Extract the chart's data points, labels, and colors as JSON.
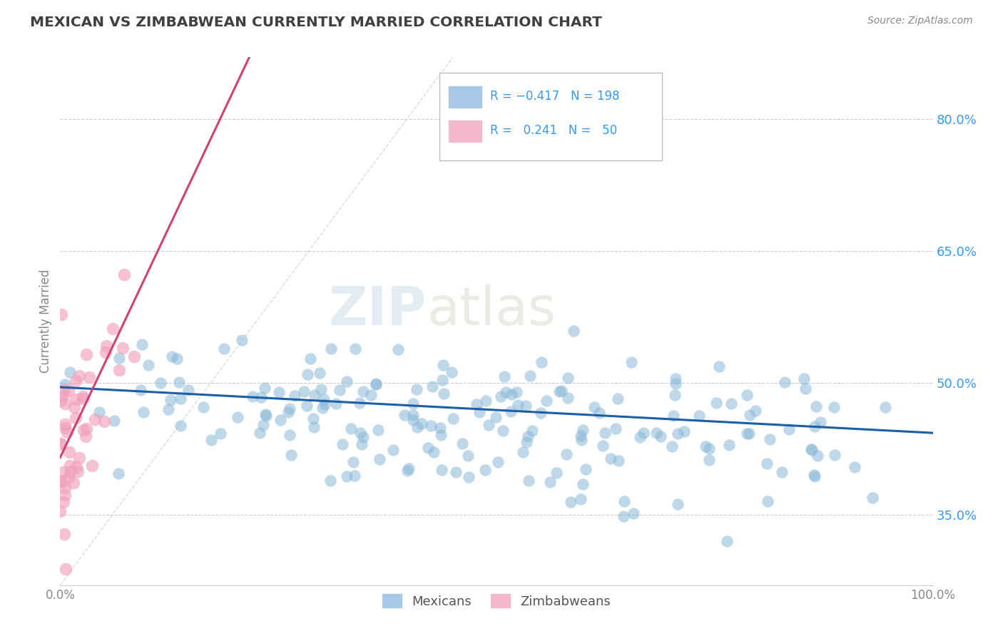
{
  "title": "MEXICAN VS ZIMBABWEAN CURRENTLY MARRIED CORRELATION CHART",
  "source_text": "Source: ZipAtlas.com",
  "ylabel": "Currently Married",
  "watermark_part1": "ZIP",
  "watermark_part2": "atlas",
  "blue_color": "#89b8d8",
  "pink_color": "#f0a0bc",
  "blue_line_color": "#1a5fa8",
  "pink_line_color": "#d44070",
  "ref_line_color": "#cccccc",
  "background_color": "#ffffff",
  "grid_color": "#cccccc",
  "title_color": "#404040",
  "right_axis_color": "#3399ff",
  "ytick_labels": [
    "35.0%",
    "50.0%",
    "65.0%",
    "80.0%"
  ],
  "ytick_values": [
    0.35,
    0.5,
    0.65,
    0.8
  ],
  "xlim": [
    0.0,
    1.0
  ],
  "ylim": [
    0.27,
    0.87
  ],
  "blue_N": 198,
  "pink_N": 50
}
